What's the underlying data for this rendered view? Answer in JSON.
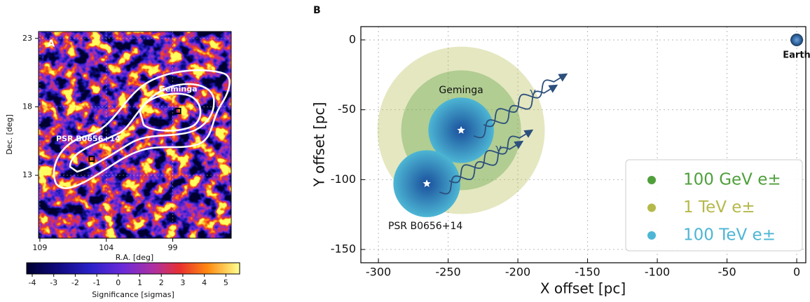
{
  "chart_data": [
    {
      "type": "heatmap",
      "panel": "A",
      "xlabel": "R.A. [deg]",
      "ylabel": "Dec. [deg]",
      "xlim": [
        109.1,
        94.6
      ],
      "ylim": [
        8.4,
        23.5
      ],
      "xticks": [
        109,
        104,
        99
      ],
      "yticks": [
        13,
        18,
        23
      ],
      "sources": [
        {
          "label": "Geminga",
          "x": 98.6,
          "y": 17.7
        },
        {
          "label": "PSR B0656+14",
          "x": 105.1,
          "y": 14.2
        }
      ],
      "colorbar": {
        "label": "Significance [sigmas]",
        "lim": [
          -4.26,
          5.64
        ],
        "ticks": [
          -4,
          -3,
          -2,
          -1,
          0,
          1,
          2,
          3,
          4,
          5
        ]
      }
    },
    {
      "type": "halo",
      "panel": "B",
      "xlabel": "X offset [pc]",
      "ylabel": "Y offset [pc]",
      "xlim": [
        -312.6,
        6.5
      ],
      "ylim": [
        -159.5,
        9.5
      ],
      "xticks": [
        -300,
        -250,
        -200,
        -150,
        -100,
        -50,
        0
      ],
      "yticks": [
        0,
        -50,
        -100,
        -150
      ],
      "grid": true,
      "sources": [
        {
          "label": "Geminga",
          "x": -240.7,
          "y": -64.7
        },
        {
          "label": "PSR B0656+14",
          "x": -265.3,
          "y": -102.9
        }
      ],
      "earth": {
        "label": "Earth",
        "x": 0,
        "y": 0
      },
      "photon_labels": [
        "γ",
        "γ"
      ],
      "series": [
        {
          "name": "100 GeV e±",
          "color": "#4f9f3b",
          "radii": [
            43,
            null
          ]
        },
        {
          "name": "1 TeV e±",
          "color": "#b5b94a",
          "radii": [
            60,
            null
          ]
        },
        {
          "name": "100 TeV e±",
          "color": "#4db6d4",
          "radii": [
            23.5,
            24
          ]
        }
      ]
    }
  ]
}
